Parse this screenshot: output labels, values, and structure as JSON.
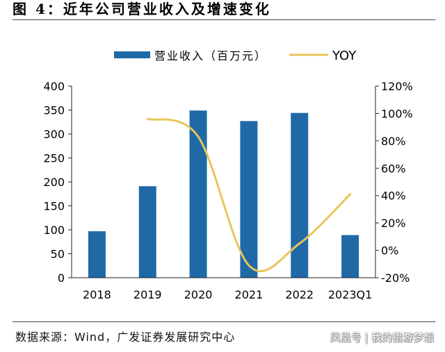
{
  "header": {
    "title": "图 4：近年公司营业收入及增速变化"
  },
  "footer": {
    "source": "数据来源：Wind，广发证券发展研究中心",
    "watermark": "凤凰号 | 我的猎游梦想"
  },
  "chart_data": {
    "type": "bar",
    "categories": [
      "2018",
      "2019",
      "2020",
      "2021",
      "2022",
      "2023Q1"
    ],
    "series": [
      {
        "name": "营业收入（百万元）",
        "type": "bar",
        "axis": "left",
        "values": [
          97,
          191,
          349,
          327,
          344,
          89
        ]
      },
      {
        "name": "YOY",
        "type": "line",
        "axis": "right",
        "unit": "%",
        "values": [
          null,
          96,
          83,
          -11,
          5,
          41
        ]
      }
    ],
    "ylim": [
      0,
      400
    ],
    "yticks": [
      0,
      50,
      100,
      150,
      200,
      250,
      300,
      350,
      400
    ],
    "y2lim": [
      -20,
      120
    ],
    "y2ticks": [
      "-20%",
      "0%",
      "20%",
      "40%",
      "60%",
      "80%",
      "100%",
      "120%"
    ],
    "y2tick_values": [
      -20,
      0,
      20,
      40,
      60,
      80,
      100,
      120
    ],
    "legend": {
      "position": "top"
    },
    "grid": false,
    "colors": {
      "bar": "#1F6AA6",
      "line": "#E9C55A",
      "axis": "#222222"
    }
  }
}
